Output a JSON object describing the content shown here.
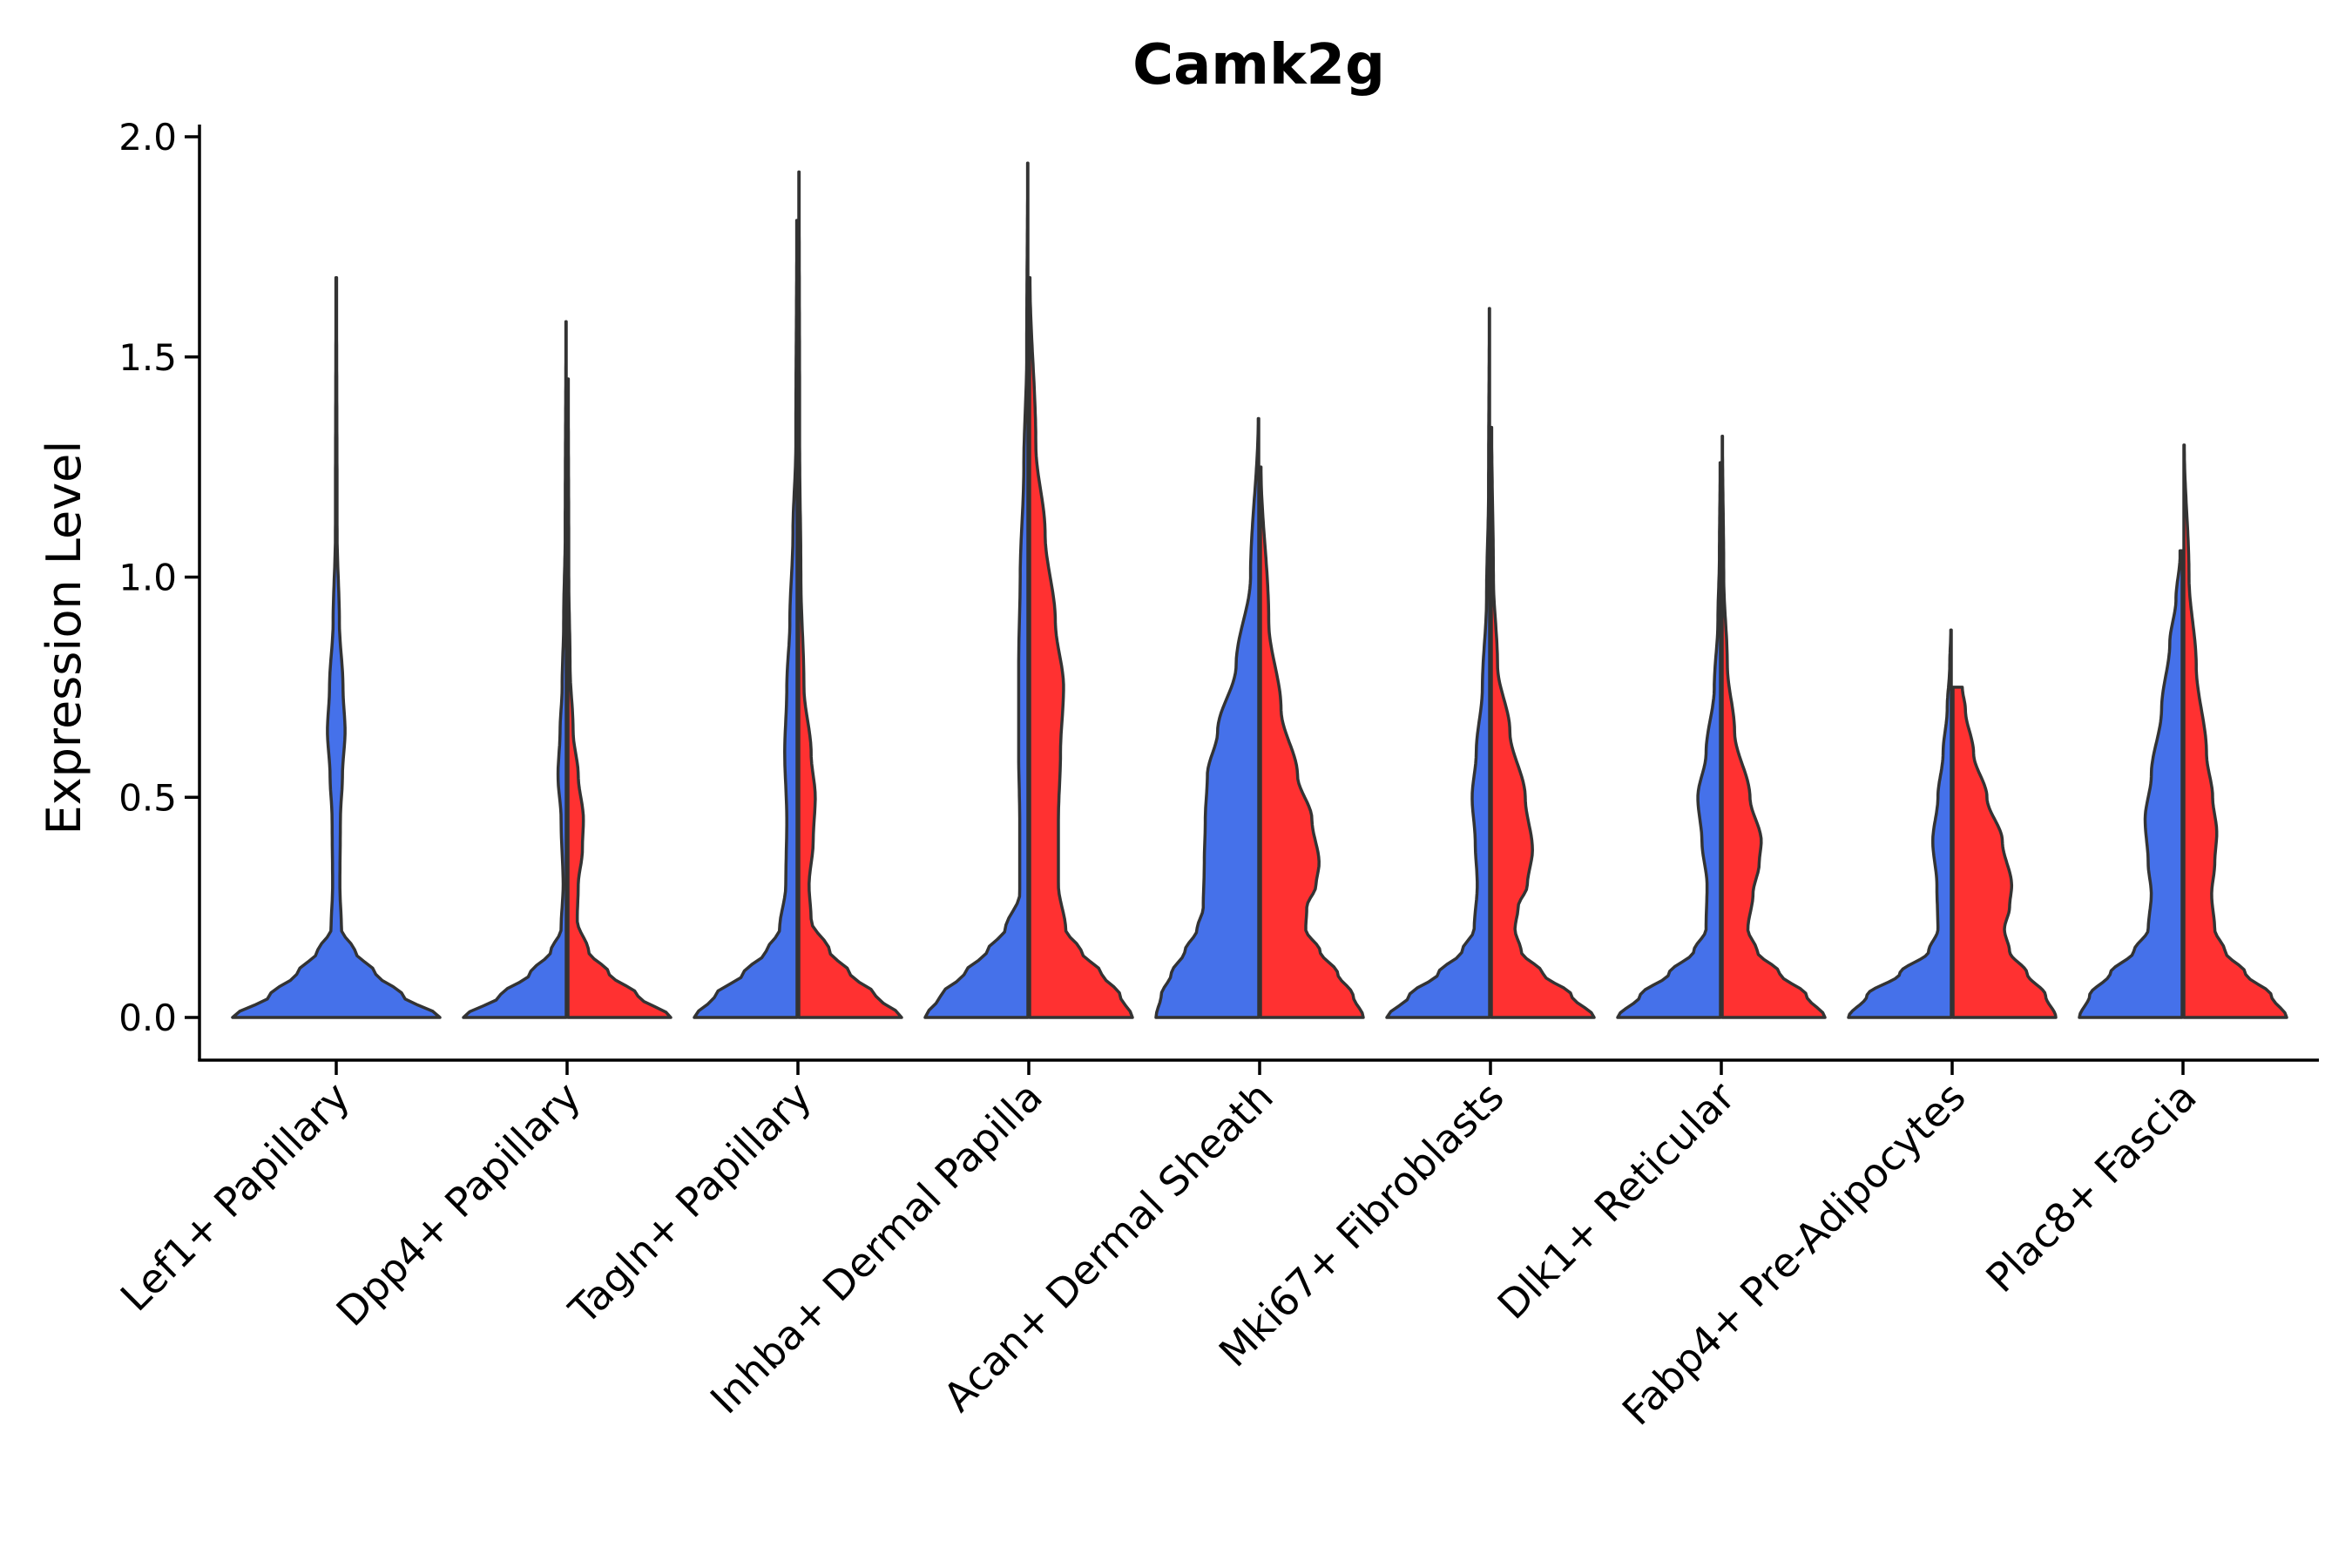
{
  "chart_data": {
    "type": "violin",
    "title": "Camk2g",
    "xlabel": "",
    "ylabel": "Expression Level",
    "ylim": [
      -0.1,
      2.03
    ],
    "yticks": [
      0.0,
      0.5,
      1.0,
      1.5,
      2.0
    ],
    "ytick_labels": [
      "0.0",
      "0.5",
      "1.0",
      "1.5",
      "2.0"
    ],
    "categories": [
      "Lef1+ Papillary",
      "Dpp4+ Papillary",
      "Tagln+ Papillary",
      "Inhba+ Dermal Papilla",
      "Acan+ Dermal Sheath",
      "Mki67+ Fibroblasts",
      "Dlk1+ Reticular",
      "Fabp4+ Pre-Adipocytes",
      "Plac8+ Fascia"
    ],
    "split_colors": {
      "left": "#4571EA",
      "right": "#FF3131"
    },
    "outline_color": "#333333",
    "violins": [
      {
        "category_index": 0,
        "side": "full",
        "color": "#4571EA",
        "max": 1.68,
        "profile": [
          [
            0,
            1.0
          ],
          [
            0.05,
            0.64
          ],
          [
            0.1,
            0.38
          ],
          [
            0.15,
            0.18
          ],
          [
            0.2,
            0.05
          ],
          [
            0.3,
            0.035
          ],
          [
            0.45,
            0.04
          ],
          [
            0.55,
            0.06
          ],
          [
            0.65,
            0.085
          ],
          [
            0.75,
            0.065
          ],
          [
            0.9,
            0.03
          ],
          [
            1.1,
            0.008
          ],
          [
            1.68,
            0.003
          ]
        ]
      },
      {
        "category_index": 1,
        "side": "left",
        "color": "#4571EA",
        "max": 1.58,
        "profile": [
          [
            0,
            1.0
          ],
          [
            0.05,
            0.64
          ],
          [
            0.1,
            0.35
          ],
          [
            0.15,
            0.15
          ],
          [
            0.2,
            0.05
          ],
          [
            0.3,
            0.03
          ],
          [
            0.45,
            0.05
          ],
          [
            0.55,
            0.08
          ],
          [
            0.65,
            0.06
          ],
          [
            0.75,
            0.04
          ],
          [
            0.9,
            0.025
          ],
          [
            1.1,
            0.01
          ],
          [
            1.58,
            0.003
          ]
        ]
      },
      {
        "category_index": 1,
        "side": "right",
        "color": "#FF3131",
        "max": 1.45,
        "profile": [
          [
            0,
            1.0
          ],
          [
            0.05,
            0.68
          ],
          [
            0.1,
            0.4
          ],
          [
            0.15,
            0.2
          ],
          [
            0.22,
            0.09
          ],
          [
            0.3,
            0.1
          ],
          [
            0.38,
            0.14
          ],
          [
            0.45,
            0.15
          ],
          [
            0.55,
            0.1
          ],
          [
            0.65,
            0.05
          ],
          [
            0.8,
            0.02
          ],
          [
            1.0,
            0.008
          ],
          [
            1.45,
            0.003
          ]
        ]
      },
      {
        "category_index": 2,
        "side": "left",
        "color": "#4571EA",
        "max": 1.81,
        "profile": [
          [
            0,
            1.0
          ],
          [
            0.05,
            0.8
          ],
          [
            0.1,
            0.52
          ],
          [
            0.15,
            0.3
          ],
          [
            0.2,
            0.17
          ],
          [
            0.3,
            0.11
          ],
          [
            0.45,
            0.1
          ],
          [
            0.6,
            0.12
          ],
          [
            0.75,
            0.1
          ],
          [
            0.9,
            0.07
          ],
          [
            1.1,
            0.04
          ],
          [
            1.3,
            0.012
          ],
          [
            1.81,
            0.003
          ]
        ]
      },
      {
        "category_index": 2,
        "side": "right",
        "color": "#FF3131",
        "max": 1.92,
        "profile": [
          [
            0,
            1.0
          ],
          [
            0.05,
            0.75
          ],
          [
            0.1,
            0.5
          ],
          [
            0.15,
            0.3
          ],
          [
            0.22,
            0.12
          ],
          [
            0.3,
            0.1
          ],
          [
            0.4,
            0.14
          ],
          [
            0.5,
            0.16
          ],
          [
            0.6,
            0.12
          ],
          [
            0.75,
            0.05
          ],
          [
            1.0,
            0.02
          ],
          [
            1.3,
            0.008
          ],
          [
            1.92,
            0.003
          ]
        ]
      },
      {
        "category_index": 3,
        "side": "left",
        "color": "#4571EA",
        "max": 1.94,
        "profile": [
          [
            0,
            1.0
          ],
          [
            0.05,
            0.85
          ],
          [
            0.1,
            0.62
          ],
          [
            0.15,
            0.4
          ],
          [
            0.2,
            0.22
          ],
          [
            0.28,
            0.08
          ],
          [
            0.45,
            0.08
          ],
          [
            0.6,
            0.09
          ],
          [
            0.8,
            0.09
          ],
          [
            1.0,
            0.075
          ],
          [
            1.25,
            0.04
          ],
          [
            1.5,
            0.012
          ],
          [
            1.94,
            0.003
          ]
        ]
      },
      {
        "category_index": 3,
        "side": "right",
        "color": "#FF3131",
        "max": 1.68,
        "profile": [
          [
            0,
            1.0
          ],
          [
            0.05,
            0.88
          ],
          [
            0.1,
            0.7
          ],
          [
            0.15,
            0.5
          ],
          [
            0.2,
            0.35
          ],
          [
            0.3,
            0.28
          ],
          [
            0.45,
            0.28
          ],
          [
            0.6,
            0.3
          ],
          [
            0.75,
            0.33
          ],
          [
            0.9,
            0.25
          ],
          [
            1.1,
            0.15
          ],
          [
            1.3,
            0.06
          ],
          [
            1.68,
            0.003
          ]
        ]
      },
      {
        "category_index": 4,
        "side": "left",
        "color": "#4571EA",
        "max": 1.36,
        "profile": [
          [
            0,
            1.0
          ],
          [
            0.05,
            0.95
          ],
          [
            0.1,
            0.85
          ],
          [
            0.15,
            0.72
          ],
          [
            0.2,
            0.6
          ],
          [
            0.25,
            0.54
          ],
          [
            0.35,
            0.53
          ],
          [
            0.45,
            0.52
          ],
          [
            0.55,
            0.5
          ],
          [
            0.65,
            0.4
          ],
          [
            0.8,
            0.22
          ],
          [
            1.0,
            0.08
          ],
          [
            1.36,
            0.005
          ]
        ]
      },
      {
        "category_index": 4,
        "side": "right",
        "color": "#FF3131",
        "max": 1.25,
        "profile": [
          [
            0,
            1.0
          ],
          [
            0.05,
            0.9
          ],
          [
            0.1,
            0.75
          ],
          [
            0.15,
            0.58
          ],
          [
            0.2,
            0.44
          ],
          [
            0.25,
            0.45
          ],
          [
            0.3,
            0.54
          ],
          [
            0.35,
            0.57
          ],
          [
            0.45,
            0.5
          ],
          [
            0.55,
            0.36
          ],
          [
            0.7,
            0.2
          ],
          [
            0.9,
            0.08
          ],
          [
            1.25,
            0.005
          ]
        ]
      },
      {
        "category_index": 5,
        "side": "left",
        "color": "#4571EA",
        "max": 1.61,
        "profile": [
          [
            0,
            1.0
          ],
          [
            0.05,
            0.78
          ],
          [
            0.1,
            0.5
          ],
          [
            0.15,
            0.27
          ],
          [
            0.2,
            0.15
          ],
          [
            0.3,
            0.12
          ],
          [
            0.4,
            0.14
          ],
          [
            0.5,
            0.17
          ],
          [
            0.6,
            0.13
          ],
          [
            0.75,
            0.07
          ],
          [
            0.95,
            0.03
          ],
          [
            1.2,
            0.01
          ],
          [
            1.61,
            0.003
          ]
        ]
      },
      {
        "category_index": 5,
        "side": "right",
        "color": "#FF3131",
        "max": 1.34,
        "profile": [
          [
            0,
            1.0
          ],
          [
            0.05,
            0.78
          ],
          [
            0.1,
            0.5
          ],
          [
            0.15,
            0.29
          ],
          [
            0.2,
            0.23
          ],
          [
            0.25,
            0.26
          ],
          [
            0.3,
            0.35
          ],
          [
            0.38,
            0.4
          ],
          [
            0.5,
            0.33
          ],
          [
            0.65,
            0.18
          ],
          [
            0.8,
            0.06
          ],
          [
            1.0,
            0.02
          ],
          [
            1.34,
            0.003
          ]
        ]
      },
      {
        "category_index": 6,
        "side": "left",
        "color": "#4571EA",
        "max": 1.26,
        "profile": [
          [
            0,
            1.0
          ],
          [
            0.05,
            0.78
          ],
          [
            0.1,
            0.5
          ],
          [
            0.15,
            0.26
          ],
          [
            0.2,
            0.14
          ],
          [
            0.3,
            0.13
          ],
          [
            0.4,
            0.18
          ],
          [
            0.5,
            0.22
          ],
          [
            0.6,
            0.14
          ],
          [
            0.75,
            0.06
          ],
          [
            0.9,
            0.025
          ],
          [
            1.05,
            0.01
          ],
          [
            1.26,
            0.003
          ]
        ]
      },
      {
        "category_index": 6,
        "side": "right",
        "color": "#FF3131",
        "max": 1.32,
        "profile": [
          [
            0,
            1.0
          ],
          [
            0.05,
            0.82
          ],
          [
            0.1,
            0.56
          ],
          [
            0.15,
            0.34
          ],
          [
            0.2,
            0.25
          ],
          [
            0.28,
            0.3
          ],
          [
            0.35,
            0.36
          ],
          [
            0.4,
            0.38
          ],
          [
            0.5,
            0.27
          ],
          [
            0.65,
            0.12
          ],
          [
            0.8,
            0.05
          ],
          [
            1.0,
            0.015
          ],
          [
            1.32,
            0.003
          ]
        ]
      },
      {
        "category_index": 7,
        "side": "left",
        "color": "#4571EA",
        "max": 0.88,
        "profile": [
          [
            0,
            1.0
          ],
          [
            0.05,
            0.82
          ],
          [
            0.1,
            0.5
          ],
          [
            0.15,
            0.22
          ],
          [
            0.2,
            0.13
          ],
          [
            0.3,
            0.14
          ],
          [
            0.4,
            0.18
          ],
          [
            0.5,
            0.13
          ],
          [
            0.6,
            0.08
          ],
          [
            0.7,
            0.04
          ],
          [
            0.8,
            0.015
          ],
          [
            0.88,
            0.005
          ]
        ]
      },
      {
        "category_index": 7,
        "side": "right",
        "color": "#FF3131",
        "max": 0.75,
        "profile": [
          [
            0,
            1.0
          ],
          [
            0.05,
            0.9
          ],
          [
            0.1,
            0.72
          ],
          [
            0.15,
            0.55
          ],
          [
            0.2,
            0.5
          ],
          [
            0.25,
            0.55
          ],
          [
            0.3,
            0.57
          ],
          [
            0.4,
            0.48
          ],
          [
            0.5,
            0.33
          ],
          [
            0.6,
            0.2
          ],
          [
            0.7,
            0.12
          ],
          [
            0.75,
            0.09
          ]
        ]
      },
      {
        "category_index": 8,
        "side": "left",
        "color": "#4571EA",
        "max": 1.06,
        "profile": [
          [
            0,
            1.0
          ],
          [
            0.05,
            0.9
          ],
          [
            0.1,
            0.7
          ],
          [
            0.15,
            0.47
          ],
          [
            0.2,
            0.33
          ],
          [
            0.28,
            0.3
          ],
          [
            0.35,
            0.33
          ],
          [
            0.45,
            0.36
          ],
          [
            0.55,
            0.3
          ],
          [
            0.7,
            0.2
          ],
          [
            0.85,
            0.12
          ],
          [
            0.95,
            0.06
          ],
          [
            1.05,
            0.02
          ]
        ]
      },
      {
        "category_index": 8,
        "side": "right",
        "color": "#FF3131",
        "max": 1.3,
        "profile": [
          [
            0,
            1.0
          ],
          [
            0.05,
            0.85
          ],
          [
            0.1,
            0.6
          ],
          [
            0.15,
            0.4
          ],
          [
            0.2,
            0.3
          ],
          [
            0.28,
            0.27
          ],
          [
            0.35,
            0.3
          ],
          [
            0.42,
            0.32
          ],
          [
            0.5,
            0.28
          ],
          [
            0.6,
            0.22
          ],
          [
            0.8,
            0.12
          ],
          [
            1.0,
            0.05
          ],
          [
            1.3,
            0.004
          ]
        ]
      }
    ]
  }
}
